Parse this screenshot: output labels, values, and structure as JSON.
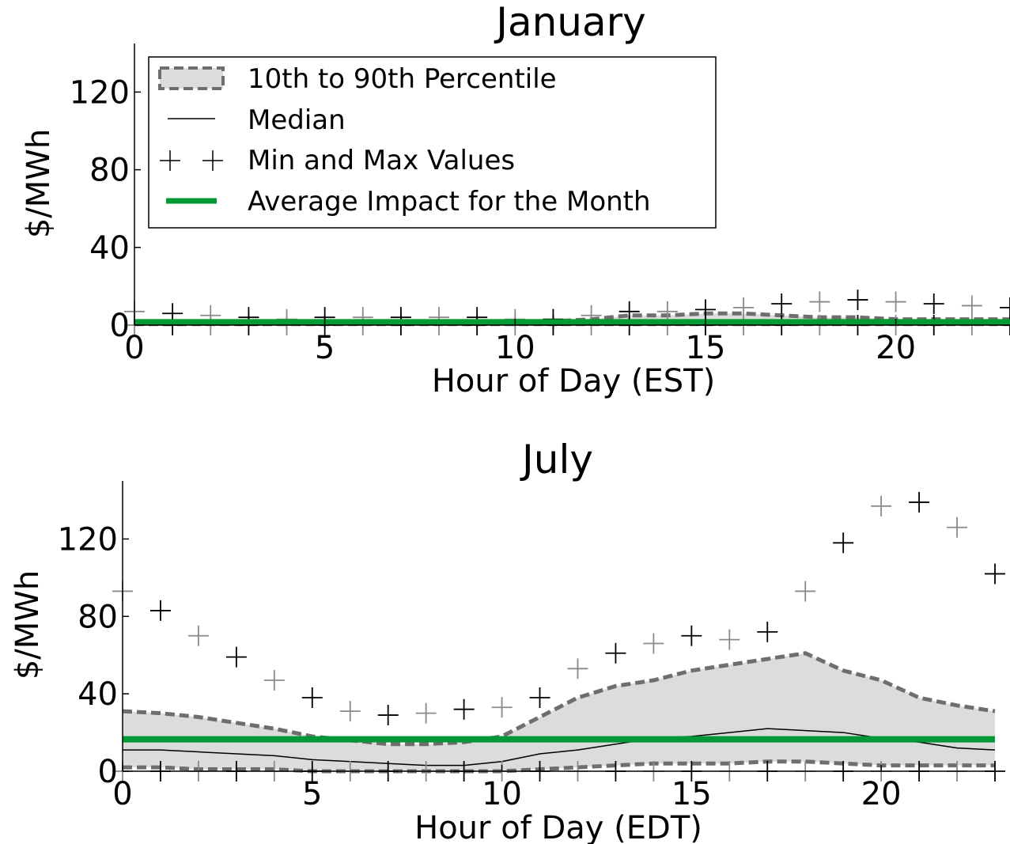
{
  "colors": {
    "band_fill": "#dcdcdc",
    "band_edge": "#6e6e6e",
    "median": "#000000",
    "average": "#009933",
    "marker_black": "#000000",
    "marker_gray": "#8a8a8a"
  },
  "legend": {
    "items": [
      "10th to 90th Percentile",
      "Median",
      "Min and Max Values",
      "Average Impact for the Month"
    ],
    "placement": "top-left"
  },
  "chart_data": [
    {
      "type": "line",
      "title": "January",
      "xlabel": "Hour of Day (EST)",
      "ylabel": "$/MWh",
      "xlim": [
        0,
        23
      ],
      "ylim": [
        0,
        145
      ],
      "xticks": [
        0,
        5,
        10,
        15,
        20
      ],
      "yticks": [
        0,
        40,
        80,
        120
      ],
      "hours": [
        0,
        1,
        2,
        3,
        4,
        5,
        6,
        7,
        8,
        9,
        10,
        11,
        12,
        13,
        14,
        15,
        16,
        17,
        18,
        19,
        20,
        21,
        22,
        23
      ],
      "series": [
        {
          "key": "p90",
          "values": [
            2,
            2,
            2,
            2,
            2,
            2,
            2,
            2,
            2,
            2,
            2,
            2,
            3,
            5,
            5,
            6,
            6,
            5,
            4,
            4,
            3,
            3,
            3,
            3
          ]
        },
        {
          "key": "p10",
          "values": [
            0.5,
            0.5,
            0.5,
            0.5,
            0.5,
            0.5,
            0.5,
            0.5,
            0.5,
            0.5,
            0.5,
            0.5,
            0.5,
            0.5,
            0.5,
            0.5,
            0.5,
            0.5,
            0.5,
            0.5,
            0.5,
            0.5,
            0.5,
            0.5
          ]
        },
        {
          "key": "median",
          "values": [
            1,
            1,
            1,
            1,
            1,
            1,
            1,
            1,
            1,
            1,
            1,
            1,
            1.5,
            2,
            2,
            2.5,
            2.5,
            2.5,
            2,
            2,
            1.5,
            1.5,
            1.5,
            1.5
          ]
        },
        {
          "key": "average",
          "values": [
            1.5,
            1.5,
            1.5,
            1.5,
            1.5,
            1.5,
            1.5,
            1.5,
            1.5,
            1.5,
            1.5,
            1.5,
            1.5,
            1.5,
            1.5,
            1.5,
            1.5,
            1.5,
            1.5,
            1.5,
            1.5,
            1.5,
            1.5,
            1.5
          ]
        },
        {
          "key": "max",
          "values": [
            7,
            6,
            5,
            4,
            3,
            4,
            4,
            4,
            4,
            4,
            3,
            3,
            5,
            7,
            7,
            8,
            9,
            11,
            12,
            13,
            12,
            11,
            10,
            9
          ]
        },
        {
          "key": "min",
          "values": [
            0,
            0,
            0,
            0,
            0,
            0,
            0,
            0,
            0,
            0,
            0,
            0,
            0,
            0,
            0,
            0,
            0,
            0,
            0,
            0,
            0,
            0,
            0,
            0
          ]
        }
      ]
    },
    {
      "type": "line",
      "title": "July",
      "xlabel": "Hour of Day (EDT)",
      "ylabel": "$/MWh",
      "xlim": [
        0,
        23
      ],
      "ylim": [
        0,
        150
      ],
      "xticks": [
        0,
        5,
        10,
        15,
        20
      ],
      "yticks": [
        0,
        40,
        80,
        120
      ],
      "hours": [
        0,
        1,
        2,
        3,
        4,
        5,
        6,
        7,
        8,
        9,
        10,
        11,
        12,
        13,
        14,
        15,
        16,
        17,
        18,
        19,
        20,
        21,
        22,
        23
      ],
      "series": [
        {
          "key": "p90",
          "values": [
            31,
            30,
            28,
            25,
            22,
            18,
            16,
            14,
            14,
            15,
            18,
            28,
            38,
            44,
            47,
            52,
            55,
            58,
            61,
            52,
            47,
            38,
            34,
            31
          ]
        },
        {
          "key": "p10",
          "values": [
            2,
            2,
            1,
            1,
            1,
            0,
            0,
            0,
            0,
            0,
            0,
            1,
            2,
            3,
            4,
            4,
            4,
            5,
            5,
            4,
            3,
            3,
            3,
            3
          ]
        },
        {
          "key": "median",
          "values": [
            11,
            11,
            10,
            9,
            8,
            6,
            5,
            4,
            3,
            3,
            5,
            9,
            11,
            14,
            17,
            18,
            20,
            22,
            21,
            20,
            17,
            15,
            12,
            11
          ]
        },
        {
          "key": "average",
          "values": [
            16.5,
            16.5,
            16.5,
            16.5,
            16.5,
            16.5,
            16.5,
            16.5,
            16.5,
            16.5,
            16.5,
            16.5,
            16.5,
            16.5,
            16.5,
            16.5,
            16.5,
            16.5,
            16.5,
            16.5,
            16.5,
            16.5,
            16.5,
            16.5
          ]
        },
        {
          "key": "max",
          "values": [
            93,
            83,
            70,
            59,
            47,
            38,
            31,
            29,
            30,
            32,
            33,
            38,
            53,
            61,
            66,
            70,
            68,
            72,
            93,
            118,
            137,
            139,
            126,
            102
          ]
        },
        {
          "key": "min",
          "values": [
            0,
            0,
            0,
            0,
            0,
            0,
            0,
            0,
            0,
            0,
            0,
            0,
            0,
            0,
            0,
            0,
            0,
            0,
            0,
            0,
            0,
            0,
            0,
            0
          ]
        }
      ]
    }
  ]
}
